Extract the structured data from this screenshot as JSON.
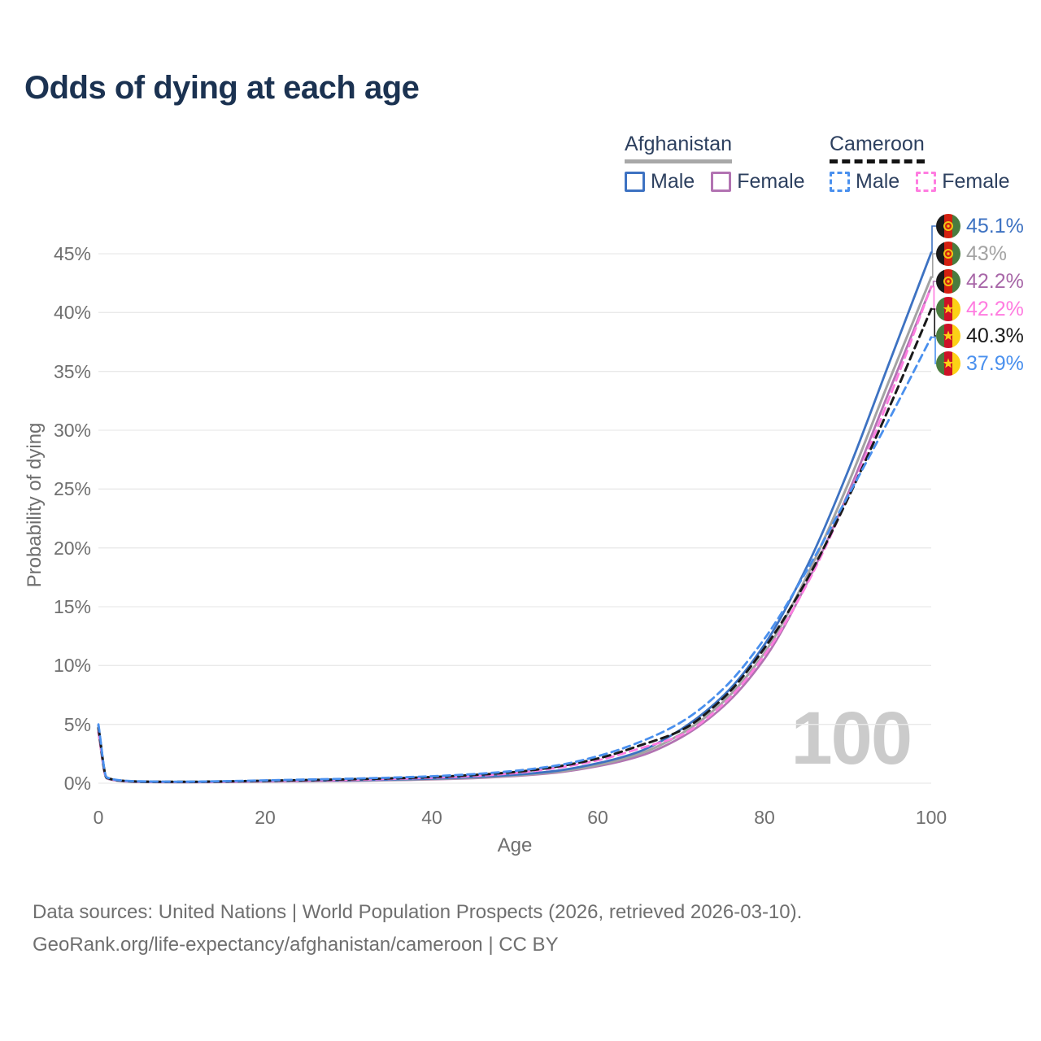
{
  "title": "Odds of dying at each age",
  "legend": {
    "groups": [
      {
        "id": "afghanistan",
        "label": "Afghanistan",
        "line_style": "solid",
        "line_color": "#a8a8a8",
        "items": [
          {
            "id": "afghanistan-male",
            "label": "Male",
            "color": "#3d72c2",
            "dashed": false
          },
          {
            "id": "afghanistan-female",
            "label": "Female",
            "color": "#b273b2",
            "dashed": false
          }
        ]
      },
      {
        "id": "cameroon",
        "label": "Cameroon",
        "line_style": "dashed",
        "line_color": "#141414",
        "items": [
          {
            "id": "cameroon-male",
            "label": "Male",
            "color": "#4a90ee",
            "dashed": true
          },
          {
            "id": "cameroon-female",
            "label": "Female",
            "color": "#ff7ce0",
            "dashed": true
          }
        ]
      }
    ]
  },
  "chart_data": {
    "type": "line",
    "title": "Odds of dying at each age",
    "xlabel": "Age",
    "ylabel": "Probability of dying",
    "xlim": [
      0,
      100
    ],
    "ylim": [
      0,
      45
    ],
    "x_ticks": [
      0,
      20,
      40,
      60,
      80,
      100
    ],
    "y_ticks": [
      0,
      5,
      10,
      15,
      20,
      25,
      30,
      35,
      40,
      45
    ],
    "y_tick_suffix": "%",
    "grid": true,
    "legend_position": "top-right",
    "x": [
      0,
      1,
      3,
      5,
      10,
      15,
      20,
      25,
      30,
      35,
      40,
      45,
      50,
      55,
      60,
      65,
      70,
      75,
      80,
      85,
      90,
      95,
      100
    ],
    "series": [
      {
        "id": "afghanistan-female",
        "name": "Afghanistan Female",
        "country": "afghanistan",
        "sex": "female",
        "color": "#b273b2",
        "dashed": false,
        "values": [
          4.3,
          0.4,
          0.16,
          0.1,
          0.08,
          0.1,
          0.13,
          0.16,
          0.19,
          0.25,
          0.32,
          0.43,
          0.61,
          0.9,
          1.45,
          2.3,
          3.9,
          6.5,
          10.6,
          16.9,
          24.6,
          33.4,
          42.2
        ],
        "end_label": "42.2%",
        "end_label_color": "#a867a8"
      },
      {
        "id": "afghanistan-both",
        "name": "Afghanistan (both sexes)",
        "country": "afghanistan",
        "sex": "both",
        "color": "#a3a3a3",
        "dashed": false,
        "values": [
          4.6,
          0.42,
          0.17,
          0.11,
          0.09,
          0.12,
          0.16,
          0.19,
          0.22,
          0.28,
          0.35,
          0.47,
          0.66,
          0.97,
          1.55,
          2.5,
          4.2,
          6.9,
          11.1,
          17.5,
          25.4,
          34.3,
          43.0
        ],
        "end_label": "43%",
        "end_label_color": "#a3a3a3"
      },
      {
        "id": "afghanistan-male",
        "name": "Afghanistan Male",
        "country": "afghanistan",
        "sex": "male",
        "color": "#3d72c2",
        "dashed": false,
        "values": [
          4.9,
          0.45,
          0.18,
          0.12,
          0.1,
          0.13,
          0.19,
          0.22,
          0.25,
          0.31,
          0.39,
          0.52,
          0.72,
          1.05,
          1.7,
          2.7,
          4.6,
          7.4,
          11.8,
          18.3,
          26.5,
          35.8,
          45.1
        ],
        "end_label": "45.1%",
        "end_label_color": "#3d72c2"
      },
      {
        "id": "cameroon-female",
        "name": "Cameroon Female",
        "country": "cameroon",
        "sex": "female",
        "color": "#ff7ce0",
        "dashed": true,
        "values": [
          4.4,
          0.44,
          0.19,
          0.13,
          0.11,
          0.13,
          0.18,
          0.23,
          0.28,
          0.36,
          0.46,
          0.61,
          0.86,
          1.3,
          1.95,
          2.95,
          4.1,
          6.7,
          10.9,
          16.8,
          24.3,
          32.8,
          42.2
        ],
        "end_label": "42.2%",
        "end_label_color": "#ff7ce0"
      },
      {
        "id": "cameroon-both",
        "name": "Cameroon (both sexes)",
        "country": "cameroon",
        "sex": "both",
        "color": "#1a1a1a",
        "dashed": true,
        "values": [
          4.7,
          0.47,
          0.2,
          0.14,
          0.12,
          0.15,
          0.21,
          0.27,
          0.33,
          0.41,
          0.52,
          0.69,
          0.95,
          1.4,
          2.1,
          3.2,
          4.5,
          7.2,
          11.5,
          17.2,
          24.2,
          32.0,
          40.3
        ],
        "end_label": "40.3%",
        "end_label_color": "#1a1a1a"
      },
      {
        "id": "cameroon-male",
        "name": "Cameroon Male",
        "country": "cameroon",
        "sex": "male",
        "color": "#4a90ee",
        "dashed": true,
        "values": [
          5.0,
          0.5,
          0.22,
          0.16,
          0.13,
          0.17,
          0.24,
          0.31,
          0.38,
          0.47,
          0.59,
          0.77,
          1.05,
          1.5,
          2.3,
          3.5,
          5.2,
          8.0,
          12.3,
          18.0,
          24.4,
          31.0,
          37.9
        ],
        "end_label": "37.9%",
        "end_label_color": "#4a90ee"
      }
    ]
  },
  "end_label_order": [
    "afghanistan-male",
    "afghanistan-both",
    "afghanistan-female",
    "cameroon-female",
    "cameroon-both",
    "cameroon-male"
  ],
  "watermark_age": "100",
  "footer": {
    "line1": "Data sources: United Nations | World Population Prospects (2026, retrieved 2026-03-10).",
    "line2": "GeoRank.org/life-expectancy/afghanistan/cameroon | CC BY"
  }
}
